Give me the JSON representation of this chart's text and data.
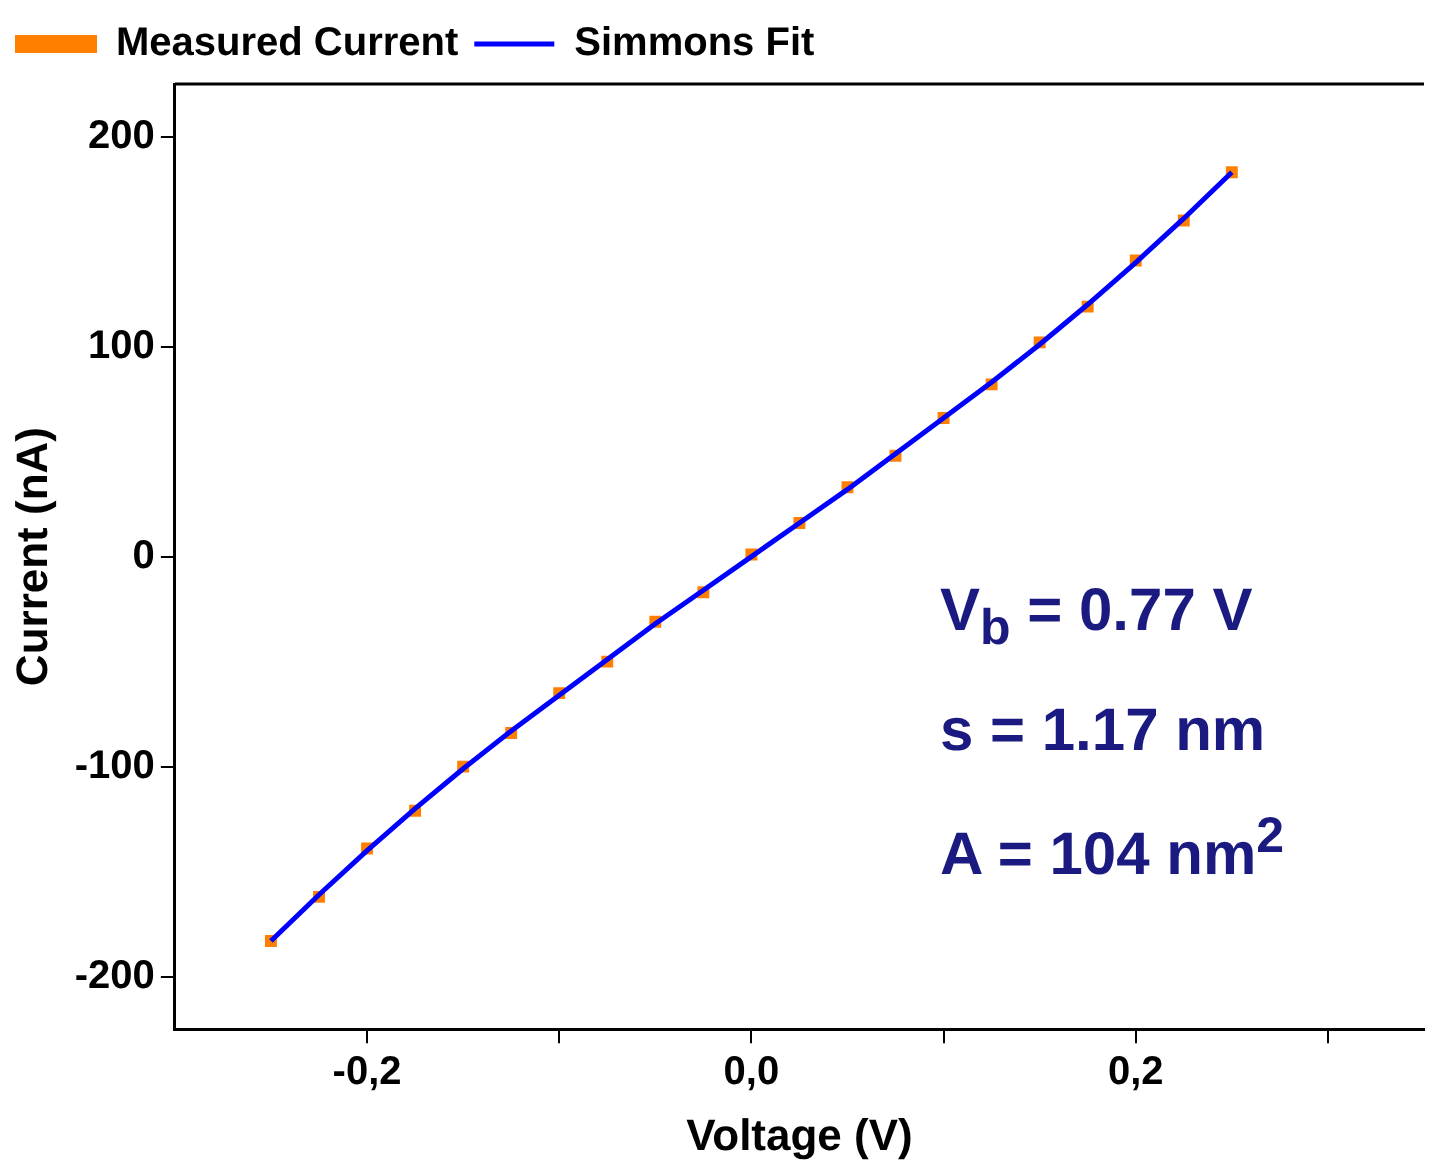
{
  "chart_data": {
    "type": "scatter",
    "xlabel": "Voltage (V)",
    "ylabel": "Current (nA)",
    "x": [
      -0.25,
      -0.225,
      -0.2,
      -0.175,
      -0.15,
      -0.125,
      -0.1,
      -0.075,
      -0.05,
      -0.025,
      0,
      0.025,
      0.05,
      0.075,
      0.1,
      0.125,
      0.15,
      0.175,
      0.2,
      0.225,
      0.25
    ],
    "series": [
      {
        "name": "Measured Current",
        "marker": "square",
        "color": "#ff8000",
        "values": [
          -183,
          -162,
          -139,
          -121,
          -100,
          -84,
          -65,
          -50,
          -31,
          -17,
          1,
          16,
          33,
          48,
          66,
          82,
          102,
          119,
          141,
          160,
          183
        ]
      },
      {
        "name": "Simmons Fit",
        "type": "line",
        "marker": "none",
        "color": "#0000ff",
        "values": [
          -183,
          -161,
          -140,
          -120,
          -101,
          -83,
          -66,
          -49,
          -32,
          -16,
          0,
          16,
          32,
          49,
          66,
          83,
          101,
          120,
          140,
          161,
          183
        ]
      }
    ],
    "xlim": [
      -0.3,
      0.35
    ],
    "xticks": [
      {
        "value": -0.2,
        "label": "-0,2"
      },
      {
        "value": -0.1,
        "label": null
      },
      {
        "value": 0,
        "label": "0,0"
      },
      {
        "value": 0.1,
        "label": null
      },
      {
        "value": 0.2,
        "label": "0,2"
      },
      {
        "value": 0.3,
        "label": null
      }
    ],
    "ylim": [
      -225,
      225
    ],
    "yticks": [
      -200,
      -100,
      0,
      100,
      200
    ],
    "grid": false,
    "legend": "top left",
    "line_style": "solid",
    "annotations": [
      "V$_{b}$ = 0.77 V",
      "s = 1.17 nm",
      "A = 104 nm$^{2}$"
    ]
  }
}
